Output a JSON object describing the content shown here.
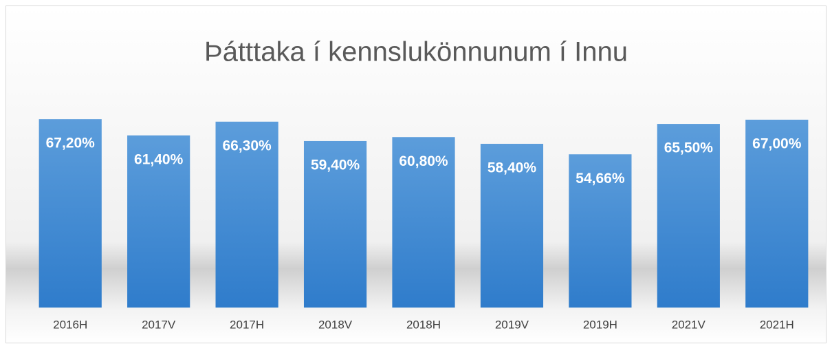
{
  "chart_data": {
    "type": "bar",
    "title": "Þátttaka í kennslukönnunum í Innu",
    "categories": [
      "2016H",
      "2017V",
      "2017H",
      "2018V",
      "2018H",
      "2019V",
      "2019H",
      "2021V",
      "2021H"
    ],
    "values": [
      67.2,
      61.4,
      66.3,
      59.4,
      60.8,
      58.4,
      54.66,
      65.5,
      67.0
    ],
    "value_labels": [
      "67,20%",
      "61,40%",
      "66,30%",
      "59,40%",
      "60,80%",
      "58,40%",
      "54,66%",
      "65,50%",
      "67,00%"
    ],
    "color": "#4a8fd6",
    "ylim": [
      0,
      80
    ]
  }
}
